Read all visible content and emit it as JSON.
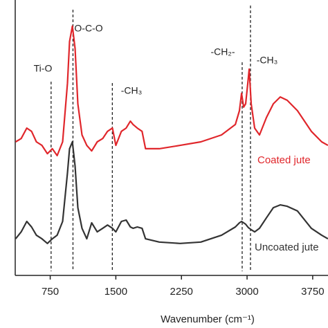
{
  "chart_data": {
    "type": "line",
    "x_label": "Wavenumber (cm⁻¹)",
    "x": [
      355,
      418,
      482,
      537,
      592,
      655,
      718,
      774,
      829,
      892,
      947,
      971,
      1003,
      1034,
      1066,
      1113,
      1168,
      1224,
      1287,
      1350,
      1405,
      1461,
      1500,
      1563,
      1618,
      1666,
      1697,
      1745,
      1800,
      1839,
      1997,
      2234,
      2471,
      2708,
      2866,
      2913,
      2937,
      2961,
      2984,
      3008,
      3024,
      3047,
      3087,
      3142,
      3221,
      3300,
      3379,
      3458,
      3576,
      3734,
      3853,
      3924
    ],
    "xlim": [
      350,
      3925
    ],
    "xticks": [
      750,
      1500,
      2250,
      3000,
      3750
    ],
    "ylim": [
      0,
      100
    ],
    "series": [
      {
        "name": "Coated jute",
        "color": "#e0262b",
        "values": [
          48.5,
          49.7,
          53.5,
          52.3,
          48.5,
          47.2,
          44.2,
          46.0,
          43.5,
          48.5,
          69.8,
          84.9,
          90.5,
          82.4,
          62.3,
          51.0,
          47.2,
          45.2,
          48.5,
          49.7,
          52.3,
          53.5,
          47.2,
          52.3,
          53.5,
          56.0,
          54.8,
          53.5,
          52.3,
          46.0,
          46.0,
          47.2,
          48.5,
          51.0,
          54.8,
          59.8,
          66.1,
          61.1,
          62.3,
          69.8,
          74.9,
          62.3,
          53.5,
          51.0,
          57.3,
          62.3,
          64.8,
          63.6,
          59.8,
          52.3,
          48.5,
          47.2
        ]
      },
      {
        "name": "Uncoated jute",
        "color": "#333333",
        "values": [
          13.3,
          15.8,
          19.6,
          17.6,
          14.6,
          13.3,
          11.6,
          13.3,
          14.6,
          19.6,
          37.2,
          46.0,
          48.5,
          39.7,
          24.6,
          17.1,
          13.3,
          19.1,
          15.8,
          17.1,
          18.3,
          17.1,
          15.8,
          19.6,
          20.1,
          17.6,
          17.1,
          17.6,
          17.1,
          13.3,
          12.1,
          11.6,
          12.1,
          14.6,
          17.6,
          19.1,
          19.6,
          19.1,
          18.6,
          17.6,
          17.1,
          16.6,
          15.8,
          17.1,
          20.9,
          24.6,
          25.6,
          25.1,
          23.4,
          17.1,
          14.6,
          13.3
        ]
      }
    ],
    "markers": [
      {
        "label": "Ti-O",
        "x": 760
      },
      {
        "label": "O-C-O",
        "x": 1010
      },
      {
        "label": "-CH₃",
        "x": 1460
      },
      {
        "label": "-CH₂-",
        "x": 2944
      },
      {
        "label": "-CH₃",
        "x": 3039
      }
    ]
  }
}
